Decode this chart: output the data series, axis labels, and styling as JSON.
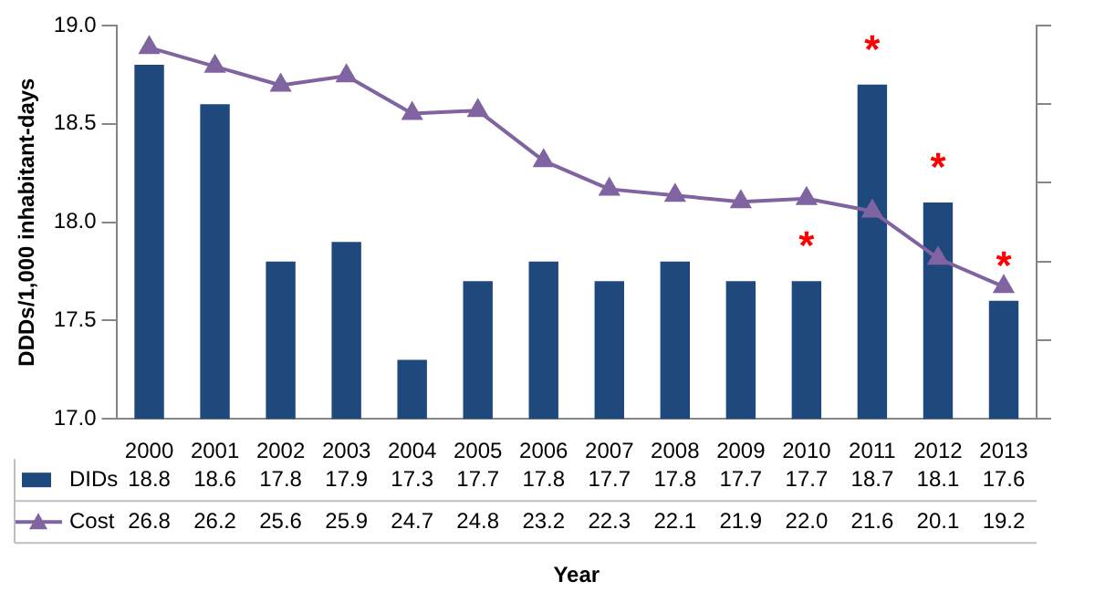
{
  "chart_data": {
    "type": "bar",
    "xlabel": "Year",
    "ylabel": "DDDs/1,000 inhabitant-days",
    "categories": [
      "2000",
      "2001",
      "2002",
      "2003",
      "2004",
      "2005",
      "2006",
      "2007",
      "2008",
      "2009",
      "2010",
      "2011",
      "2012",
      "2013"
    ],
    "series": [
      {
        "name": "DIDs",
        "color": "#1f497d",
        "values": [
          18.8,
          18.6,
          17.8,
          17.9,
          17.3,
          17.7,
          17.8,
          17.7,
          17.8,
          17.7,
          17.7,
          18.7,
          18.1,
          17.6
        ]
      },
      {
        "name": "Cost",
        "type": "line",
        "axis": "y2",
        "color": "#8064a2",
        "marker": "triangle",
        "values": [
          26.8,
          26.2,
          25.6,
          25.9,
          24.7,
          24.8,
          23.2,
          22.3,
          22.1,
          21.9,
          22.0,
          21.6,
          20.1,
          19.2
        ],
        "value_labels": [
          "26.8",
          "26.2",
          "25.6",
          "25.9",
          "24.7",
          "24.8",
          "23.2",
          "22.3",
          "22.1",
          "21.9",
          "22.0",
          "21.6",
          "20.1",
          "19.2"
        ]
      }
    ],
    "ylim": [
      17,
      19
    ],
    "yticks": [
      {
        "value": 17,
        "label": "17.0"
      },
      {
        "value": 17.5,
        "label": "17.5"
      },
      {
        "value": 18,
        "label": "18.0"
      },
      {
        "value": 18.5,
        "label": "18.5"
      },
      {
        "value": 19,
        "label": "19.0"
      }
    ],
    "y2lim": [
      15,
      27.5
    ],
    "y2ticks": [
      {
        "value": 15,
        "label": null
      },
      {
        "value": 17.5,
        "label": null
      },
      {
        "value": 20,
        "label": null
      },
      {
        "value": 22.5,
        "label": null
      },
      {
        "value": 25,
        "label": null
      },
      {
        "value": 27.5,
        "label": null
      }
    ],
    "data_labels": true,
    "legend": "bottom",
    "annotations": [
      {
        "text": "*",
        "x": "2010",
        "y": 17.7
      },
      {
        "text": "*",
        "x": "2011",
        "y": 18.7
      },
      {
        "text": "*",
        "x": "2012",
        "y": 18.1
      },
      {
        "text": "*",
        "x": "2013",
        "y": 17.6
      }
    ]
  }
}
